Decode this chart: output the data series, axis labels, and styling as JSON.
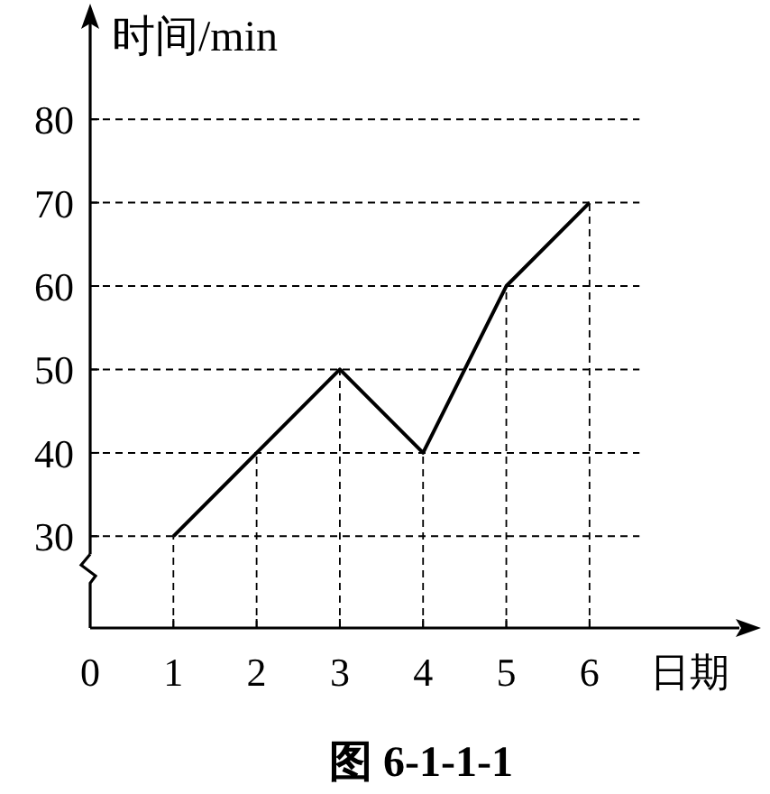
{
  "chart_data": {
    "type": "line",
    "ylabel": "时间/min",
    "xlabel": "日期",
    "x": [
      1,
      2,
      3,
      4,
      5,
      6
    ],
    "series": [
      {
        "color": "#000000",
        "values": [
          30,
          40,
          50,
          40,
          60,
          70
        ]
      }
    ],
    "xlim": [
      0,
      7.8
    ],
    "xticks": [
      0,
      1,
      2,
      3,
      4,
      5,
      6
    ],
    "ylim": [
      19,
      93
    ],
    "yticks": [
      30,
      40,
      50,
      60,
      70,
      80
    ],
    "ref_lines": [
      {
        "axis": "x",
        "value": 1,
        "line_style": "dashed"
      },
      {
        "axis": "x",
        "value": 2,
        "line_style": "dashed"
      },
      {
        "axis": "x",
        "value": 3,
        "line_style": "dashed"
      },
      {
        "axis": "x",
        "value": 4,
        "line_style": "dashed"
      },
      {
        "axis": "x",
        "value": 5,
        "line_style": "dashed"
      },
      {
        "axis": "x",
        "value": 6,
        "line_style": "dashed"
      }
    ],
    "grid": "y",
    "marker": "none",
    "line_style": "solid",
    "annotations": [
      "图 6-1-1-1"
    ]
  }
}
